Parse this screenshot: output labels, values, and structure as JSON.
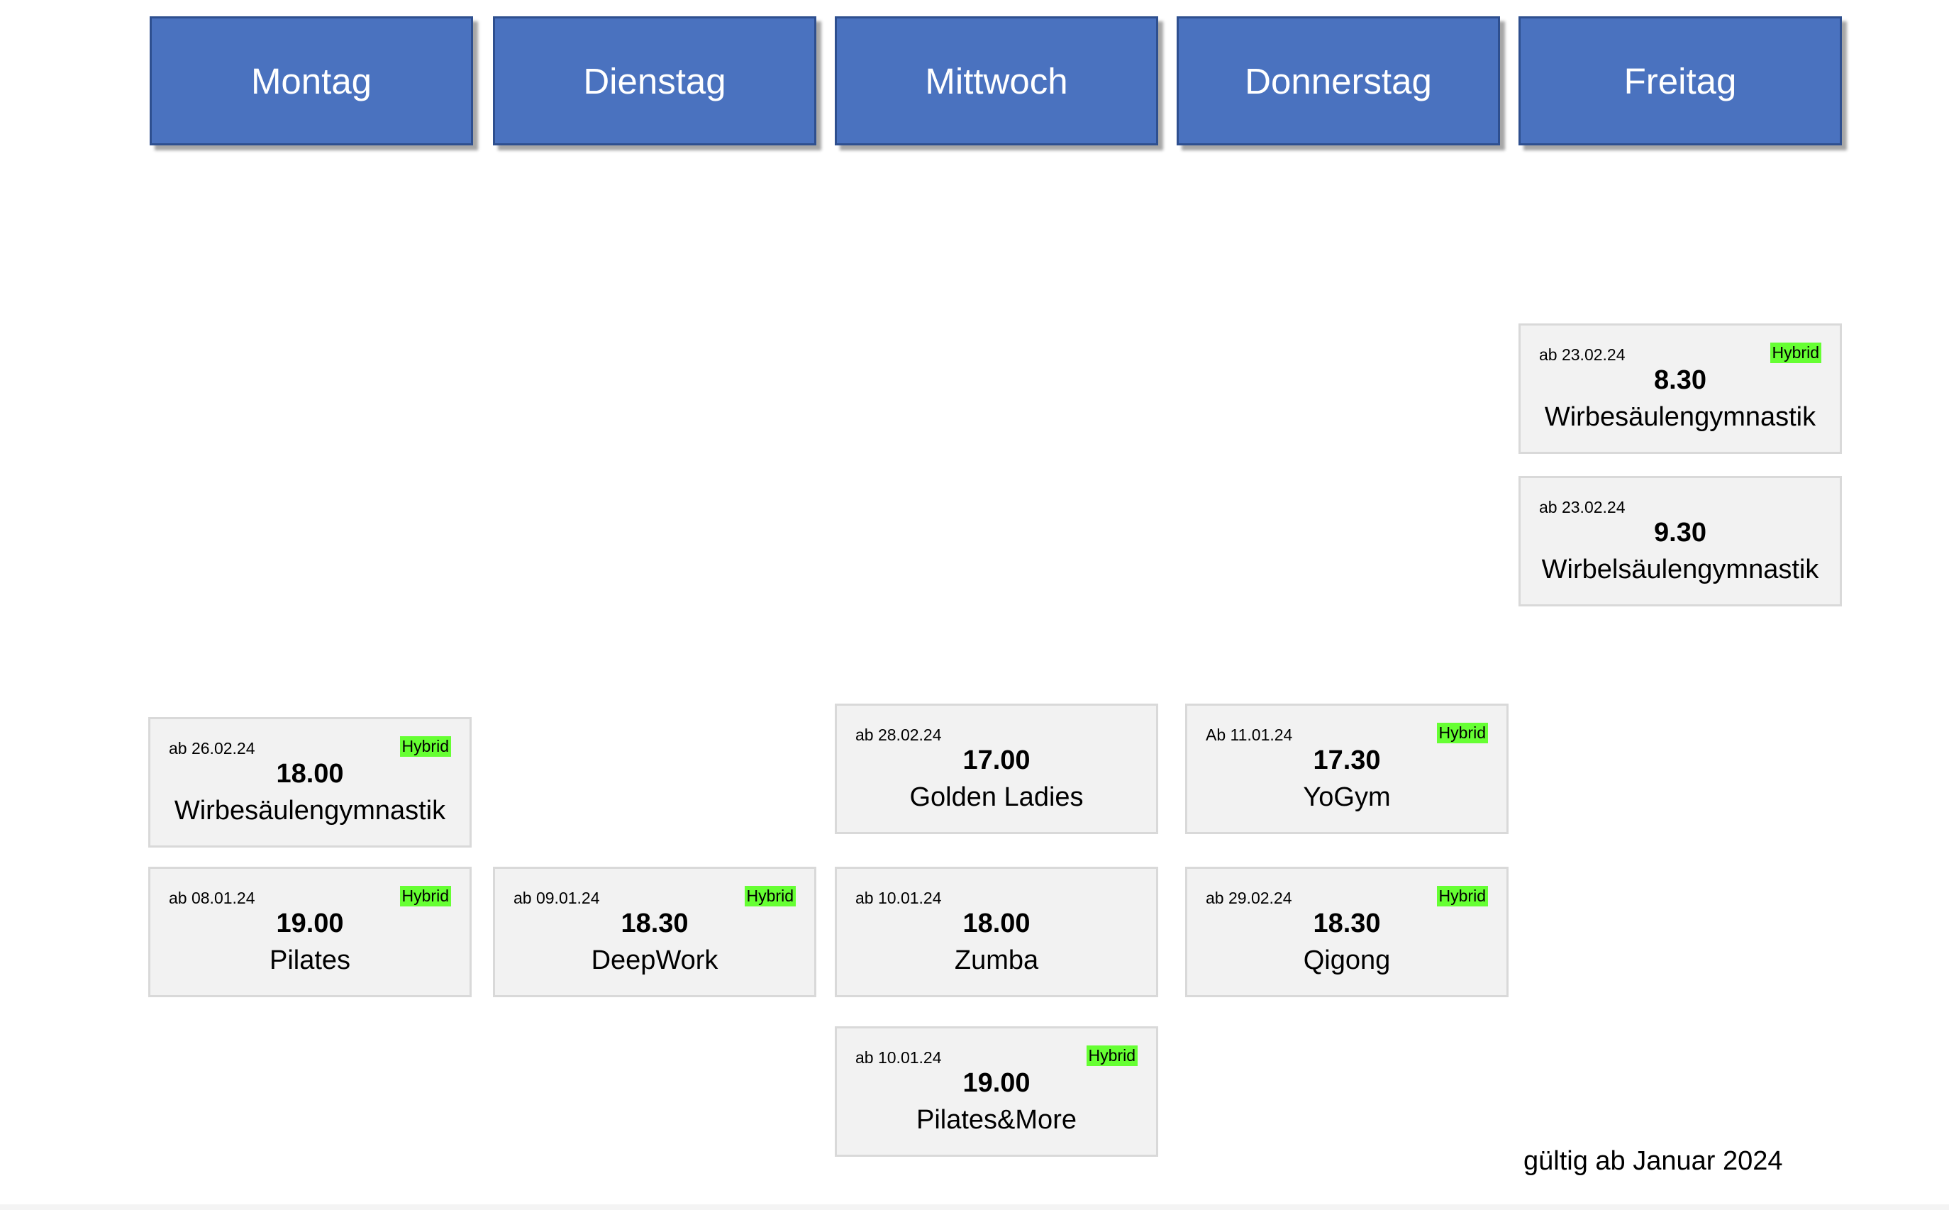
{
  "days": [
    {
      "label": "Montag"
    },
    {
      "label": "Dienstag"
    },
    {
      "label": "Mittwoch"
    },
    {
      "label": "Donnerstag"
    },
    {
      "label": "Freitag"
    }
  ],
  "classes": [
    {
      "day": "Freitag",
      "date": "ab 23.02.24",
      "badge": "Hybrid",
      "time": "8.30",
      "name": "Wirbesäulengymnastik"
    },
    {
      "day": "Freitag",
      "date": "ab 23.02.24",
      "badge": "",
      "time": "9.30",
      "name": "Wirbelsäulengymnastik"
    },
    {
      "day": "Montag",
      "date": "ab 26.02.24",
      "badge": "Hybrid",
      "time": "18.00",
      "name": "Wirbesäulengymnastik"
    },
    {
      "day": "Mittwoch",
      "date": "ab 28.02.24",
      "badge": "",
      "time": "17.00",
      "name": "Golden Ladies"
    },
    {
      "day": "Donnerstag",
      "date": "Ab 11.01.24",
      "badge": "Hybrid",
      "time": "17.30",
      "name": "YoGym"
    },
    {
      "day": "Montag",
      "date": "ab 08.01.24",
      "badge": "Hybrid",
      "time": "19.00",
      "name": "Pilates"
    },
    {
      "day": "Dienstag",
      "date": "ab 09.01.24",
      "badge": "Hybrid",
      "time": "18.30",
      "name": "DeepWork"
    },
    {
      "day": "Mittwoch",
      "date": "ab 10.01.24",
      "badge": "",
      "time": "18.00",
      "name": "Zumba"
    },
    {
      "day": "Donnerstag",
      "date": "ab 29.02.24",
      "badge": "Hybrid",
      "time": "18.30",
      "name": "Qigong"
    },
    {
      "day": "Mittwoch",
      "date": "ab 10.01.24",
      "badge": "Hybrid",
      "time": "19.00",
      "name": "Pilates&More"
    }
  ],
  "footer": {
    "validity": "gültig ab Januar 2024"
  },
  "colors": {
    "header_bg": "#4a72bf",
    "card_bg": "#f2f2f2",
    "hybrid_badge": "#66ff33"
  }
}
